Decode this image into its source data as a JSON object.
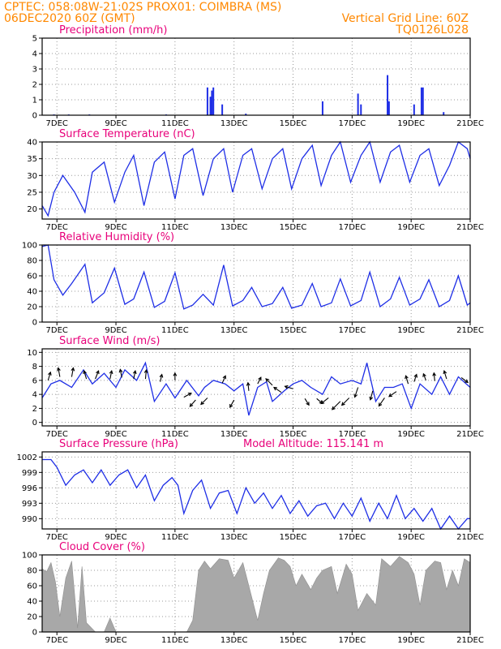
{
  "header": {
    "line1": "CPTEC:   058:08W-21:02S   PROX01: COIMBRA (MS)",
    "line2": "06DEC2020 60Z (GMT)",
    "grid_note": "Vertical Grid Line: 60Z",
    "run_id": "TQ0126L028"
  },
  "x_axis": {
    "tick_labels": [
      "7DEC",
      "9DEC",
      "11DEC",
      "13DEC",
      "15DEC",
      "17DEC",
      "19DEC",
      "21DEC"
    ],
    "tick_days": [
      7,
      9,
      11,
      13,
      15,
      17,
      19,
      21
    ],
    "start_day": 6.5,
    "end_day": 21
  },
  "colors": {
    "series": "#1e2ee6",
    "cloud": "#a8a8a8",
    "title": "#e8007a",
    "header": "#ff8800",
    "arrow": "#000000"
  },
  "chart_data": [
    {
      "type": "bar",
      "id": "precip",
      "title": "Precipitation (mm/h)",
      "ylim": [
        0,
        5
      ],
      "yticks": [
        0,
        1,
        2,
        3,
        4,
        5
      ],
      "x": [
        6.9,
        7.4,
        8.1,
        10.7,
        12.1,
        12.2,
        12.25,
        12.3,
        12.6,
        13.4,
        16.0,
        17.2,
        17.3,
        18.2,
        18.25,
        19.1,
        19.35,
        19.4,
        20.1
      ],
      "values": [
        0.05,
        0.05,
        0.05,
        0.05,
        1.8,
        1.2,
        1.6,
        1.8,
        0.7,
        0.1,
        0.9,
        1.4,
        0.7,
        2.6,
        0.9,
        0.7,
        1.8,
        1.8,
        0.2
      ]
    },
    {
      "type": "line",
      "id": "temp",
      "title": "Surface Temperature (nC)",
      "ylim": [
        17,
        40
      ],
      "yticks": [
        20,
        25,
        30,
        35,
        40
      ],
      "x": [
        6.5,
        6.7,
        6.9,
        7.2,
        7.6,
        7.95,
        8.2,
        8.6,
        8.95,
        9.3,
        9.6,
        9.95,
        10.3,
        10.65,
        11.0,
        11.3,
        11.6,
        11.95,
        12.3,
        12.65,
        12.95,
        13.3,
        13.6,
        13.95,
        14.3,
        14.65,
        14.95,
        15.3,
        15.65,
        15.95,
        16.3,
        16.6,
        16.95,
        17.3,
        17.6,
        17.95,
        18.3,
        18.6,
        18.95,
        19.3,
        19.6,
        19.95,
        20.3,
        20.6,
        20.9,
        21.0
      ],
      "values": [
        21,
        18,
        25,
        30,
        25,
        19,
        31,
        34,
        22,
        31,
        36,
        21,
        34,
        37,
        23,
        36,
        38,
        24,
        35,
        38,
        25,
        36,
        38,
        26,
        35,
        38,
        26,
        35,
        39,
        27,
        36,
        40,
        28,
        36,
        40,
        28,
        37,
        39,
        28,
        36,
        38,
        27,
        33,
        40,
        38,
        35
      ]
    },
    {
      "type": "line",
      "id": "rh",
      "title": "Relative Humidity (%)",
      "ylim": [
        0,
        100
      ],
      "yticks": [
        0,
        20,
        40,
        60,
        80,
        100
      ],
      "x": [
        6.5,
        6.7,
        6.9,
        7.2,
        7.5,
        7.95,
        8.2,
        8.6,
        8.95,
        9.3,
        9.6,
        9.95,
        10.3,
        10.65,
        11.0,
        11.3,
        11.6,
        11.95,
        12.3,
        12.65,
        12.95,
        13.3,
        13.6,
        13.95,
        14.3,
        14.65,
        14.95,
        15.3,
        15.65,
        15.95,
        16.3,
        16.6,
        16.95,
        17.3,
        17.6,
        17.95,
        18.3,
        18.6,
        18.95,
        19.3,
        19.6,
        19.95,
        20.3,
        20.6,
        20.9,
        21.0
      ],
      "values": [
        98,
        100,
        55,
        35,
        50,
        75,
        25,
        38,
        70,
        23,
        30,
        65,
        19,
        27,
        64,
        17,
        22,
        36,
        22,
        74,
        21,
        28,
        45,
        20,
        24,
        45,
        18,
        22,
        50,
        20,
        25,
        56,
        21,
        28,
        65,
        20,
        30,
        58,
        22,
        30,
        55,
        20,
        28,
        60,
        22,
        25
      ]
    },
    {
      "type": "line",
      "id": "wind",
      "title": "Surface Wind (m/s)",
      "ylim": [
        -0.5,
        10.5
      ],
      "yticks": [
        0,
        2,
        4,
        6,
        8,
        10
      ],
      "x": [
        6.5,
        6.8,
        7.1,
        7.5,
        7.9,
        8.2,
        8.6,
        9.0,
        9.3,
        9.7,
        10.0,
        10.3,
        10.7,
        11.0,
        11.4,
        11.8,
        12.0,
        12.3,
        12.7,
        13.0,
        13.3,
        13.5,
        13.8,
        14.1,
        14.3,
        14.7,
        15.0,
        15.3,
        15.6,
        16.0,
        16.3,
        16.6,
        17.0,
        17.3,
        17.5,
        17.8,
        18.1,
        18.4,
        18.7,
        19.0,
        19.3,
        19.7,
        20.0,
        20.3,
        20.6,
        21.0
      ],
      "values": [
        3.5,
        5.5,
        6.0,
        5.0,
        7.5,
        5.5,
        7.0,
        5.0,
        7.5,
        6.0,
        8.5,
        3.0,
        5.5,
        3.5,
        6.0,
        3.8,
        5.0,
        6.0,
        5.5,
        4.5,
        5.5,
        1.0,
        5.0,
        5.8,
        3.0,
        4.5,
        5.5,
        6.0,
        5.0,
        4.0,
        6.5,
        5.5,
        6.0,
        5.5,
        8.5,
        3.0,
        5.0,
        5.0,
        5.5,
        2.0,
        5.5,
        4.0,
        6.5,
        4.0,
        6.5,
        5.0
      ],
      "arrows": [
        {
          "x": 6.7,
          "y": 6.0,
          "dx": 3,
          "dy": -10
        },
        {
          "x": 7.1,
          "y": 6.5,
          "dx": -2,
          "dy": -11
        },
        {
          "x": 7.5,
          "y": 6.5,
          "dx": 2,
          "dy": -11
        },
        {
          "x": 8.0,
          "y": 6.2,
          "dx": -3,
          "dy": -10
        },
        {
          "x": 8.3,
          "y": 6.2,
          "dx": 4,
          "dy": -10
        },
        {
          "x": 8.8,
          "y": 6.2,
          "dx": 2,
          "dy": -10
        },
        {
          "x": 9.2,
          "y": 6.4,
          "dx": -2,
          "dy": -10
        },
        {
          "x": 9.6,
          "y": 6.2,
          "dx": 2,
          "dy": -10
        },
        {
          "x": 10.0,
          "y": 6.2,
          "dx": 1,
          "dy": -11
        },
        {
          "x": 10.5,
          "y": 5.8,
          "dx": 2,
          "dy": -9
        },
        {
          "x": 11.0,
          "y": 6.0,
          "dx": 0,
          "dy": -9
        },
        {
          "x": 11.3,
          "y": 3.6,
          "dx": 9,
          "dy": -5
        },
        {
          "x": 11.7,
          "y": 3.2,
          "dx": -7,
          "dy": 8
        },
        {
          "x": 12.1,
          "y": 3.5,
          "dx": -8,
          "dy": 8
        },
        {
          "x": 12.6,
          "y": 5.6,
          "dx": 4,
          "dy": -9
        },
        {
          "x": 13.0,
          "y": 3.2,
          "dx": -5,
          "dy": 9
        },
        {
          "x": 13.5,
          "y": 4.5,
          "dx": -1,
          "dy": -10
        },
        {
          "x": 13.8,
          "y": 5.5,
          "dx": 4,
          "dy": -8
        },
        {
          "x": 14.3,
          "y": 5.3,
          "dx": -8,
          "dy": -8
        },
        {
          "x": 14.6,
          "y": 4.3,
          "dx": -9,
          "dy": -6
        },
        {
          "x": 15.0,
          "y": 4.8,
          "dx": -10,
          "dy": -3
        },
        {
          "x": 15.4,
          "y": 3.4,
          "dx": 5,
          "dy": 8
        },
        {
          "x": 15.8,
          "y": 3.4,
          "dx": 7,
          "dy": 6
        },
        {
          "x": 16.2,
          "y": 3.5,
          "dx": -9,
          "dy": 7
        },
        {
          "x": 16.6,
          "y": 3.0,
          "dx": -10,
          "dy": 10
        },
        {
          "x": 16.9,
          "y": 3.5,
          "dx": -9,
          "dy": 9
        },
        {
          "x": 17.2,
          "y": 5.0,
          "dx": -4,
          "dy": 12
        },
        {
          "x": 17.7,
          "y": 4.5,
          "dx": -3,
          "dy": 11
        },
        {
          "x": 18.1,
          "y": 3.5,
          "dx": -7,
          "dy": 10
        },
        {
          "x": 18.5,
          "y": 4.4,
          "dx": -9,
          "dy": 6
        },
        {
          "x": 18.9,
          "y": 5.5,
          "dx": -3,
          "dy": -10
        },
        {
          "x": 19.1,
          "y": 5.8,
          "dx": 3,
          "dy": -9
        },
        {
          "x": 19.5,
          "y": 6.0,
          "dx": -3,
          "dy": -8
        },
        {
          "x": 19.8,
          "y": 5.9,
          "dx": -1,
          "dy": -10
        },
        {
          "x": 20.2,
          "y": 6.2,
          "dx": -3,
          "dy": -10
        },
        {
          "x": 20.7,
          "y": 6.4,
          "dx": 8,
          "dy": 6
        }
      ]
    },
    {
      "type": "line",
      "id": "press",
      "title": "Surface Pressure (hPa)",
      "annotation": "Model Altitude: 115.141  m",
      "ylim": [
        988,
        1003
      ],
      "yticks": [
        990,
        993,
        996,
        999,
        1002
      ],
      "x": [
        6.5,
        6.8,
        7.0,
        7.3,
        7.6,
        7.9,
        8.2,
        8.5,
        8.8,
        9.1,
        9.4,
        9.7,
        10.0,
        10.3,
        10.6,
        10.9,
        11.1,
        11.3,
        11.6,
        11.9,
        12.2,
        12.5,
        12.8,
        13.1,
        13.4,
        13.7,
        14.0,
        14.3,
        14.6,
        14.9,
        15.2,
        15.5,
        15.8,
        16.1,
        16.4,
        16.7,
        17.0,
        17.3,
        17.6,
        17.9,
        18.2,
        18.5,
        18.8,
        19.1,
        19.4,
        19.7,
        20.0,
        20.3,
        20.6,
        20.9,
        21.0
      ],
      "values": [
        1001.5,
        1001.5,
        1000.0,
        996.5,
        998.5,
        999.5,
        997.0,
        999.5,
        996.5,
        998.5,
        999.5,
        996.0,
        998.5,
        993.5,
        996.5,
        998.0,
        996.5,
        991.0,
        995.5,
        997.5,
        992.0,
        995.0,
        995.5,
        991.0,
        996.0,
        993.0,
        995.0,
        992.0,
        994.5,
        991.0,
        993.5,
        990.5,
        992.5,
        993.0,
        990.0,
        993.0,
        990.5,
        994.0,
        989.5,
        993.0,
        990.0,
        994.5,
        990.0,
        992.0,
        989.5,
        992.0,
        988.0,
        990.5,
        988.0,
        990.0,
        990.0
      ]
    },
    {
      "type": "area",
      "id": "cloud",
      "title": "Cloud Cover (%)",
      "ylim": [
        0,
        100
      ],
      "yticks": [
        0,
        20,
        40,
        60,
        80,
        100
      ],
      "x": [
        6.5,
        6.65,
        6.8,
        6.95,
        7.1,
        7.3,
        7.5,
        7.7,
        7.85,
        8.0,
        8.3,
        8.6,
        8.8,
        9.0,
        9.5,
        10.0,
        10.3,
        10.6,
        11.0,
        11.4,
        11.6,
        11.8,
        12.0,
        12.2,
        12.5,
        12.8,
        13.0,
        13.3,
        13.5,
        13.8,
        14.0,
        14.2,
        14.5,
        14.7,
        14.9,
        15.1,
        15.3,
        15.6,
        15.8,
        16.0,
        16.3,
        16.5,
        16.8,
        17.0,
        17.2,
        17.5,
        17.8,
        18.0,
        18.3,
        18.6,
        18.9,
        19.1,
        19.3,
        19.5,
        19.8,
        20.0,
        20.2,
        20.4,
        20.6,
        20.8,
        21.0
      ],
      "values": [
        82,
        78,
        90,
        65,
        20,
        70,
        92,
        5,
        85,
        12,
        0,
        0,
        18,
        0,
        0,
        0,
        0,
        0,
        0,
        0,
        15,
        80,
        92,
        82,
        95,
        93,
        70,
        90,
        60,
        15,
        50,
        80,
        96,
        93,
        85,
        60,
        75,
        55,
        70,
        80,
        85,
        50,
        88,
        75,
        28,
        50,
        35,
        95,
        85,
        98,
        90,
        75,
        35,
        80,
        92,
        90,
        55,
        80,
        60,
        95,
        90
      ]
    }
  ]
}
